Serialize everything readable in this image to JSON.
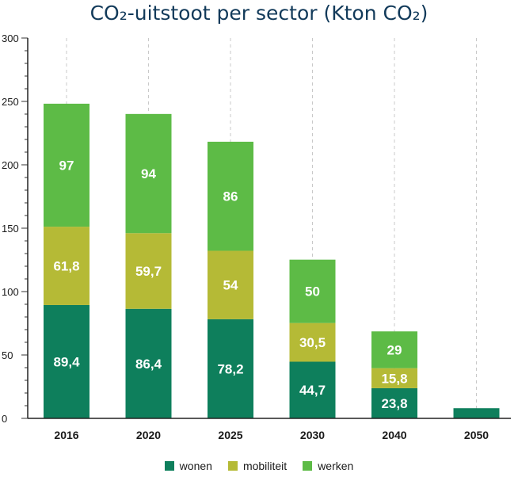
{
  "chart_data": {
    "type": "bar",
    "stacked": true,
    "title": "CO₂-uitstoot per sector (Kton CO₂)",
    "categories": [
      "2016",
      "2020",
      "2025",
      "2030",
      "2040",
      "2050"
    ],
    "series": [
      {
        "name": "wonen",
        "color": "#0e7f5c",
        "values": [
          89.4,
          86.4,
          78.2,
          44.7,
          23.8,
          8
        ],
        "labels": [
          "89,4",
          "86,4",
          "78,2",
          "44,7",
          "23,8",
          ""
        ]
      },
      {
        "name": "mobiliteit",
        "color": "#b5ba36",
        "values": [
          61.8,
          59.7,
          54,
          30.5,
          15.8,
          0
        ],
        "labels": [
          "61,8",
          "59,7",
          "54",
          "30,5",
          "15,8",
          ""
        ]
      },
      {
        "name": "werken",
        "color": "#5dbb46",
        "values": [
          97,
          94,
          86,
          50,
          29,
          0
        ],
        "labels": [
          "97",
          "94",
          "86",
          "50",
          "29",
          ""
        ]
      }
    ],
    "ylim": [
      0,
      300
    ],
    "yticks": [
      "0",
      "50",
      "100",
      "150",
      "200",
      "250",
      "300"
    ],
    "xlabel": "",
    "ylabel": "",
    "legend_position": "bottom-center"
  }
}
